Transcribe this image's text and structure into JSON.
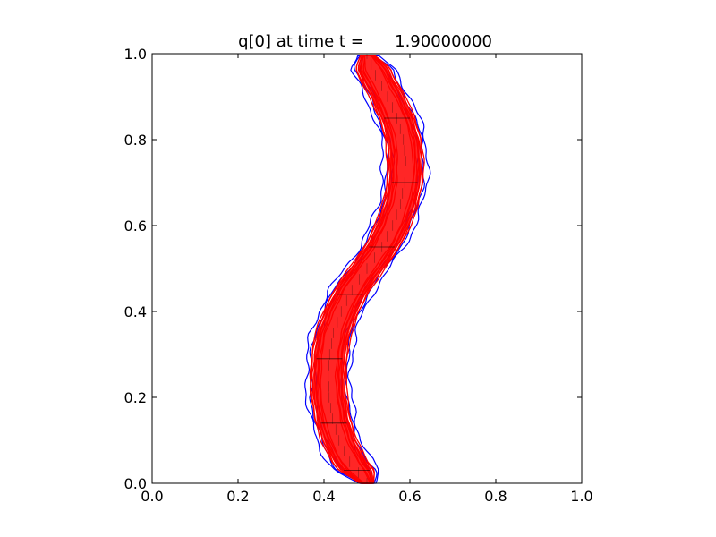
{
  "chart_data": {
    "type": "line",
    "title": "q[0] at time t =      1.90000000",
    "xlabel": "",
    "ylabel": "",
    "xlim": [
      0.0,
      1.0
    ],
    "ylim": [
      0.0,
      1.0
    ],
    "x_ticks": [
      "0.0",
      "0.2",
      "0.4",
      "0.6",
      "0.8",
      "1.0"
    ],
    "y_ticks": [
      "0.0",
      "0.2",
      "0.4",
      "0.6",
      "0.8",
      "1.0"
    ],
    "grid": false,
    "legend": "none",
    "colors": {
      "red_contours": "#ff0000",
      "blue_contours": "#0000ff",
      "grid_lines": "#000000"
    },
    "curve": {
      "y": [
        0.0,
        0.05,
        0.1,
        0.15,
        0.2,
        0.25,
        0.3,
        0.35,
        0.4,
        0.45,
        0.5,
        0.55,
        0.6,
        0.65,
        0.7,
        0.75,
        0.8,
        0.85,
        0.9,
        0.95,
        1.0
      ],
      "x": [
        0.5,
        0.46,
        0.435,
        0.42,
        0.412,
        0.41,
        0.413,
        0.422,
        0.44,
        0.465,
        0.5,
        0.535,
        0.56,
        0.578,
        0.588,
        0.59,
        0.585,
        0.57,
        0.548,
        0.52,
        0.5
      ]
    },
    "red_halfwidths": [
      0.018,
      0.022,
      0.026,
      0.03,
      0.033,
      0.036,
      0.039,
      0.042
    ],
    "blue_halfwidths": [
      0.03,
      0.042,
      0.052
    ],
    "mesh_levels_y": [
      0.03,
      0.14,
      0.29,
      0.44,
      0.55,
      0.7,
      0.85
    ]
  }
}
